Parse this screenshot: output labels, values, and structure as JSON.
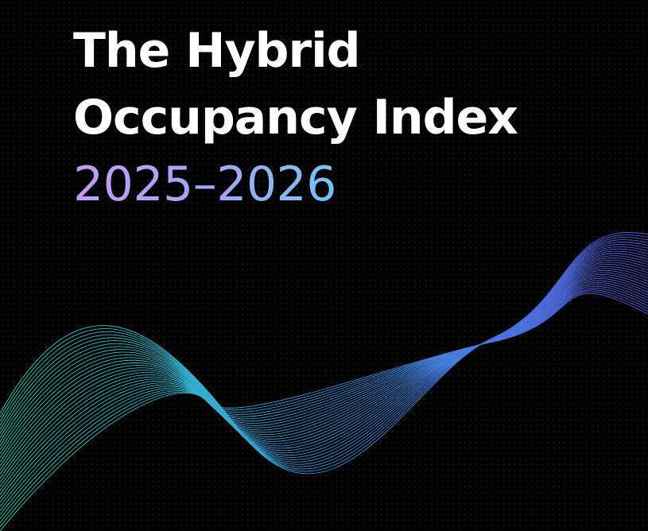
{
  "title": {
    "line1": "The Hybrid",
    "line2": "Occupancy Index",
    "years": "2025–2026"
  },
  "colors": {
    "background": "#000000",
    "title": "#ffffff",
    "years_gradient": [
      "#c39cf2",
      "#5fd0f7",
      "#34e6f7"
    ],
    "wave_gradient": [
      "#2ee8c8",
      "#3f9be8",
      "#5a5fe8"
    ]
  }
}
